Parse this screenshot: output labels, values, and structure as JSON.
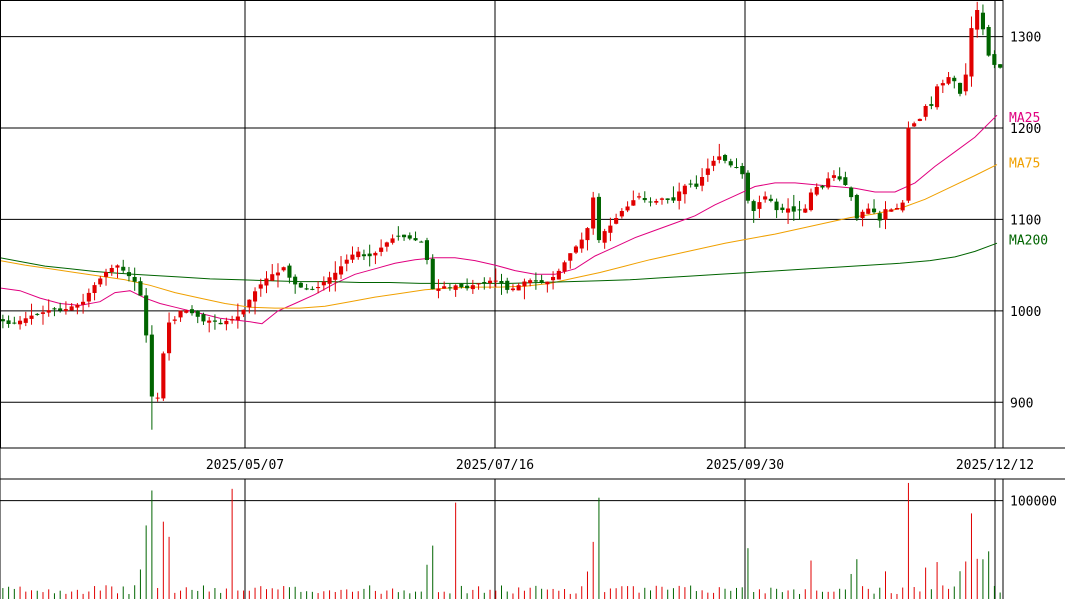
{
  "chart_data": {
    "type": "candlestick",
    "price_axis": {
      "ticks": [
        900,
        1000,
        1100,
        1200,
        1300
      ],
      "range": [
        850,
        1340
      ]
    },
    "date_labels": [
      "2025/05/07",
      "2025/07/16",
      "2025/09/30",
      "2025/12/12"
    ],
    "legend": [
      {
        "label": "MA25",
        "color": "#e0007f",
        "y": 1212
      },
      {
        "label": "MA75",
        "color": "#f0a000",
        "y": 1162
      },
      {
        "label": "MA200",
        "color": "#006400",
        "y": 1078
      }
    ],
    "up_color": "#e00000",
    "down_color": "#006400",
    "volume_axis": {
      "ticks": [
        100000
      ],
      "range": [
        0,
        122000
      ]
    },
    "highlights": [
      {
        "date": "2025/04/08",
        "low": 870,
        "value_label": "low"
      },
      {
        "date": "2025/12/10",
        "high": 1338,
        "value_label": "high"
      }
    ],
    "ma_curves": {
      "ma25": [
        [
          0,
          1025
        ],
        [
          20,
          1022
        ],
        [
          40,
          1014
        ],
        [
          60,
          1008
        ],
        [
          80,
          1006
        ],
        [
          100,
          1010
        ],
        [
          115,
          1020
        ],
        [
          130,
          1022
        ],
        [
          145,
          1014
        ],
        [
          160,
          1008
        ],
        [
          175,
          1004
        ],
        [
          190,
          1000
        ],
        [
          205,
          996
        ],
        [
          220,
          992
        ],
        [
          235,
          990
        ],
        [
          250,
          988
        ],
        [
          262,
          986
        ],
        [
          278,
          1000
        ],
        [
          295,
          1008
        ],
        [
          315,
          1018
        ],
        [
          335,
          1030
        ],
        [
          355,
          1040
        ],
        [
          375,
          1046
        ],
        [
          395,
          1052
        ],
        [
          415,
          1056
        ],
        [
          435,
          1058
        ],
        [
          455,
          1058
        ],
        [
          475,
          1055
        ],
        [
          495,
          1050
        ],
        [
          515,
          1044
        ],
        [
          535,
          1040
        ],
        [
          555,
          1040
        ],
        [
          575,
          1046
        ],
        [
          595,
          1060
        ],
        [
          615,
          1070
        ],
        [
          635,
          1080
        ],
        [
          655,
          1088
        ],
        [
          675,
          1096
        ],
        [
          695,
          1104
        ],
        [
          715,
          1116
        ],
        [
          735,
          1126
        ],
        [
          755,
          1136
        ],
        [
          775,
          1140
        ],
        [
          795,
          1140
        ],
        [
          815,
          1138
        ],
        [
          835,
          1136
        ],
        [
          855,
          1134
        ],
        [
          875,
          1130
        ],
        [
          895,
          1130
        ],
        [
          915,
          1140
        ],
        [
          935,
          1158
        ],
        [
          955,
          1174
        ],
        [
          975,
          1190
        ],
        [
          997,
          1214
        ]
      ],
      "ma75": [
        [
          0,
          1055
        ],
        [
          25,
          1050
        ],
        [
          50,
          1046
        ],
        [
          75,
          1042
        ],
        [
          100,
          1038
        ],
        [
          125,
          1034
        ],
        [
          150,
          1028
        ],
        [
          175,
          1020
        ],
        [
          200,
          1014
        ],
        [
          225,
          1008
        ],
        [
          250,
          1004
        ],
        [
          275,
          1003
        ],
        [
          300,
          1003
        ],
        [
          325,
          1005
        ],
        [
          350,
          1010
        ],
        [
          375,
          1015
        ],
        [
          400,
          1019
        ],
        [
          425,
          1023
        ],
        [
          450,
          1025
        ],
        [
          475,
          1026
        ],
        [
          500,
          1026
        ],
        [
          525,
          1027
        ],
        [
          550,
          1030
        ],
        [
          575,
          1036
        ],
        [
          600,
          1042
        ],
        [
          625,
          1049
        ],
        [
          650,
          1056
        ],
        [
          675,
          1062
        ],
        [
          700,
          1068
        ],
        [
          725,
          1074
        ],
        [
          750,
          1079
        ],
        [
          775,
          1084
        ],
        [
          800,
          1090
        ],
        [
          825,
          1096
        ],
        [
          850,
          1102
        ],
        [
          875,
          1106
        ],
        [
          900,
          1112
        ],
        [
          925,
          1122
        ],
        [
          950,
          1135
        ],
        [
          975,
          1148
        ],
        [
          997,
          1160
        ]
      ],
      "ma200": [
        [
          0,
          1058
        ],
        [
          20,
          1054
        ],
        [
          45,
          1049
        ],
        [
          70,
          1046
        ],
        [
          95,
          1043
        ],
        [
          120,
          1041
        ],
        [
          150,
          1039
        ],
        [
          180,
          1037
        ],
        [
          210,
          1035
        ],
        [
          240,
          1034
        ],
        [
          270,
          1033
        ],
        [
          300,
          1032
        ],
        [
          330,
          1032
        ],
        [
          360,
          1031
        ],
        [
          390,
          1031
        ],
        [
          420,
          1030
        ],
        [
          450,
          1030
        ],
        [
          480,
          1030
        ],
        [
          510,
          1030
        ],
        [
          540,
          1031
        ],
        [
          570,
          1032
        ],
        [
          600,
          1033
        ],
        [
          630,
          1034
        ],
        [
          660,
          1036
        ],
        [
          690,
          1038
        ],
        [
          720,
          1040
        ],
        [
          750,
          1042
        ],
        [
          780,
          1044
        ],
        [
          810,
          1046
        ],
        [
          840,
          1048
        ],
        [
          870,
          1050
        ],
        [
          900,
          1052
        ],
        [
          930,
          1055
        ],
        [
          955,
          1059
        ],
        [
          975,
          1065
        ],
        [
          997,
          1074
        ]
      ]
    },
    "anchors": [
      [
        0,
        990
      ],
      [
        10,
        985
      ],
      [
        22,
        990
      ],
      [
        32,
        995
      ],
      [
        42,
        998
      ],
      [
        52,
        1002
      ],
      [
        62,
        1000
      ],
      [
        72,
        1005
      ],
      [
        82,
        1008
      ],
      [
        92,
        1025
      ],
      [
        100,
        1035
      ],
      [
        108,
        1045
      ],
      [
        118,
        1050
      ],
      [
        125,
        1042
      ],
      [
        132,
        1035
      ],
      [
        138,
        1028
      ],
      [
        144,
        1000
      ],
      [
        148,
        950
      ],
      [
        152,
        905
      ],
      [
        156,
        895
      ],
      [
        160,
        920
      ],
      [
        164,
        960
      ],
      [
        168,
        990
      ],
      [
        172,
        980
      ],
      [
        176,
        995
      ],
      [
        182,
        1002
      ],
      [
        188,
        1000
      ],
      [
        196,
        995
      ],
      [
        204,
        988
      ],
      [
        212,
        990
      ],
      [
        220,
        985
      ],
      [
        228,
        990
      ],
      [
        236,
        992
      ],
      [
        242,
        998
      ],
      [
        248,
        1010
      ],
      [
        254,
        1020
      ],
      [
        260,
        1028
      ],
      [
        266,
        1035
      ],
      [
        272,
        1040
      ],
      [
        278,
        1042
      ],
      [
        284,
        1048
      ],
      [
        290,
        1035
      ],
      [
        296,
        1028
      ],
      [
        302,
        1025
      ],
      [
        310,
        1022
      ],
      [
        318,
        1026
      ],
      [
        326,
        1034
      ],
      [
        334,
        1040
      ],
      [
        342,
        1050
      ],
      [
        350,
        1060
      ],
      [
        358,
        1065
      ],
      [
        366,
        1058
      ],
      [
        374,
        1062
      ],
      [
        382,
        1070
      ],
      [
        390,
        1078
      ],
      [
        398,
        1082
      ],
      [
        406,
        1080
      ],
      [
        414,
        1078
      ],
      [
        420,
        1075
      ],
      [
        425,
        1076
      ],
      [
        430,
        1025
      ],
      [
        436,
        1022
      ],
      [
        442,
        1028
      ],
      [
        448,
        1025
      ],
      [
        456,
        1028
      ],
      [
        466,
        1024
      ],
      [
        476,
        1030
      ],
      [
        484,
        1030
      ],
      [
        492,
        1034
      ],
      [
        500,
        1032
      ],
      [
        508,
        1022
      ],
      [
        516,
        1026
      ],
      [
        524,
        1032
      ],
      [
        532,
        1034
      ],
      [
        540,
        1030
      ],
      [
        548,
        1032
      ],
      [
        556,
        1040
      ],
      [
        562,
        1048
      ],
      [
        568,
        1060
      ],
      [
        574,
        1068
      ],
      [
        580,
        1075
      ],
      [
        586,
        1085
      ],
      [
        590,
        1100
      ],
      [
        594,
        1130
      ],
      [
        598,
        1075
      ],
      [
        602,
        1085
      ],
      [
        608,
        1090
      ],
      [
        614,
        1098
      ],
      [
        620,
        1108
      ],
      [
        626,
        1112
      ],
      [
        632,
        1120
      ],
      [
        640,
        1126
      ],
      [
        648,
        1118
      ],
      [
        656,
        1120
      ],
      [
        664,
        1124
      ],
      [
        672,
        1118
      ],
      [
        680,
        1132
      ],
      [
        688,
        1140
      ],
      [
        696,
        1135
      ],
      [
        704,
        1150
      ],
      [
        712,
        1162
      ],
      [
        718,
        1170
      ],
      [
        724,
        1165
      ],
      [
        732,
        1158
      ],
      [
        740,
        1155
      ],
      [
        746,
        1140
      ],
      [
        750,
        1100
      ],
      [
        756,
        1115
      ],
      [
        762,
        1122
      ],
      [
        768,
        1128
      ],
      [
        774,
        1112
      ],
      [
        780,
        1108
      ],
      [
        786,
        1114
      ],
      [
        792,
        1108
      ],
      [
        798,
        1110
      ],
      [
        806,
        1112
      ],
      [
        814,
        1140
      ],
      [
        820,
        1130
      ],
      [
        826,
        1142
      ],
      [
        832,
        1150
      ],
      [
        838,
        1145
      ],
      [
        844,
        1140
      ],
      [
        850,
        1130
      ],
      [
        856,
        1100
      ],
      [
        862,
        1108
      ],
      [
        868,
        1112
      ],
      [
        874,
        1108
      ],
      [
        878,
        1090
      ],
      [
        882,
        1110
      ],
      [
        888,
        1112
      ],
      [
        894,
        1110
      ],
      [
        900,
        1115
      ],
      [
        904,
        1120
      ],
      [
        908,
        1200
      ],
      [
        914,
        1205
      ],
      [
        920,
        1210
      ],
      [
        926,
        1225
      ],
      [
        930,
        1218
      ],
      [
        936,
        1245
      ],
      [
        942,
        1248
      ],
      [
        948,
        1256
      ],
      [
        954,
        1252
      ],
      [
        958,
        1240
      ],
      [
        962,
        1235
      ],
      [
        966,
        1260
      ],
      [
        970,
        1300
      ],
      [
        974,
        1325
      ],
      [
        978,
        1330
      ],
      [
        982,
        1315
      ],
      [
        986,
        1285
      ],
      [
        992,
        1272
      ],
      [
        997,
        1266
      ]
    ]
  }
}
